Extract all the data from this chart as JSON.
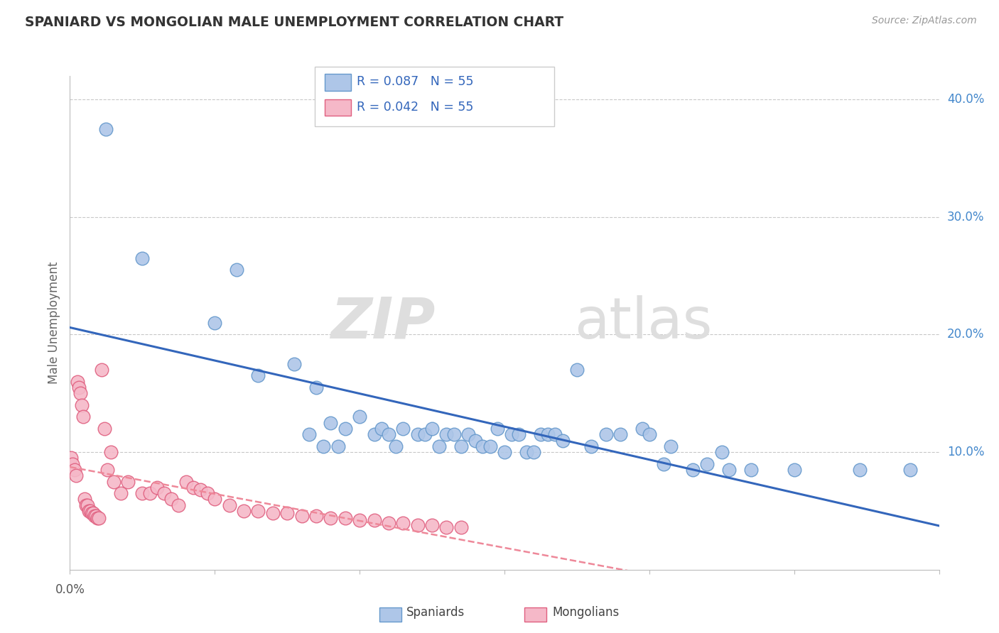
{
  "title": "SPANIARD VS MONGOLIAN MALE UNEMPLOYMENT CORRELATION CHART",
  "source": "Source: ZipAtlas.com",
  "ylabel": "Male Unemployment",
  "xlim": [
    0.0,
    0.6
  ],
  "ylim": [
    0.0,
    0.42
  ],
  "yticks": [
    0.1,
    0.2,
    0.3,
    0.4
  ],
  "grid_color": "#c8c8c8",
  "background_color": "#ffffff",
  "spaniards_color": "#aec6e8",
  "mongolians_color": "#f5b8c8",
  "spaniards_edge_color": "#6699cc",
  "mongolians_edge_color": "#e06080",
  "spaniards_line_color": "#3366bb",
  "mongolians_line_color": "#ee8899",
  "R_spaniards": 0.087,
  "R_mongolians": 0.042,
  "N_spaniards": 55,
  "N_mongolians": 55,
  "watermark_zip": "ZIP",
  "watermark_atlas": "atlas",
  "title_color": "#333333",
  "source_color": "#999999",
  "yaxis_label_color": "#4488cc",
  "bottom_tick_color": "#aaaaaa",
  "spaniards_x": [
    0.025,
    0.05,
    0.1,
    0.115,
    0.13,
    0.155,
    0.165,
    0.17,
    0.175,
    0.18,
    0.185,
    0.19,
    0.2,
    0.21,
    0.215,
    0.22,
    0.225,
    0.23,
    0.24,
    0.245,
    0.25,
    0.255,
    0.26,
    0.265,
    0.27,
    0.275,
    0.28,
    0.285,
    0.29,
    0.295,
    0.3,
    0.305,
    0.31,
    0.315,
    0.32,
    0.325,
    0.33,
    0.335,
    0.34,
    0.35,
    0.36,
    0.37,
    0.38,
    0.395,
    0.4,
    0.41,
    0.415,
    0.43,
    0.44,
    0.45,
    0.455,
    0.47,
    0.5,
    0.545,
    0.58
  ],
  "spaniards_y": [
    0.375,
    0.265,
    0.21,
    0.255,
    0.165,
    0.175,
    0.115,
    0.155,
    0.105,
    0.125,
    0.105,
    0.12,
    0.13,
    0.115,
    0.12,
    0.115,
    0.105,
    0.12,
    0.115,
    0.115,
    0.12,
    0.105,
    0.115,
    0.115,
    0.105,
    0.115,
    0.11,
    0.105,
    0.105,
    0.12,
    0.1,
    0.115,
    0.115,
    0.1,
    0.1,
    0.115,
    0.115,
    0.115,
    0.11,
    0.17,
    0.105,
    0.115,
    0.115,
    0.12,
    0.115,
    0.09,
    0.105,
    0.085,
    0.09,
    0.1,
    0.085,
    0.085,
    0.085,
    0.085,
    0.085
  ],
  "mongolians_x": [
    0.001,
    0.002,
    0.003,
    0.004,
    0.005,
    0.006,
    0.007,
    0.008,
    0.009,
    0.01,
    0.011,
    0.012,
    0.013,
    0.014,
    0.015,
    0.016,
    0.017,
    0.018,
    0.019,
    0.02,
    0.022,
    0.024,
    0.026,
    0.028,
    0.03,
    0.035,
    0.04,
    0.05,
    0.055,
    0.06,
    0.065,
    0.07,
    0.075,
    0.08,
    0.085,
    0.09,
    0.095,
    0.1,
    0.11,
    0.12,
    0.13,
    0.14,
    0.15,
    0.16,
    0.17,
    0.18,
    0.19,
    0.2,
    0.21,
    0.22,
    0.23,
    0.24,
    0.25,
    0.26,
    0.27
  ],
  "mongolians_y": [
    0.095,
    0.09,
    0.085,
    0.08,
    0.16,
    0.155,
    0.15,
    0.14,
    0.13,
    0.06,
    0.055,
    0.055,
    0.05,
    0.05,
    0.048,
    0.048,
    0.046,
    0.046,
    0.044,
    0.044,
    0.17,
    0.12,
    0.085,
    0.1,
    0.075,
    0.065,
    0.075,
    0.065,
    0.065,
    0.07,
    0.065,
    0.06,
    0.055,
    0.075,
    0.07,
    0.068,
    0.065,
    0.06,
    0.055,
    0.05,
    0.05,
    0.048,
    0.048,
    0.046,
    0.046,
    0.044,
    0.044,
    0.042,
    0.042,
    0.04,
    0.04,
    0.038,
    0.038,
    0.036,
    0.036
  ]
}
